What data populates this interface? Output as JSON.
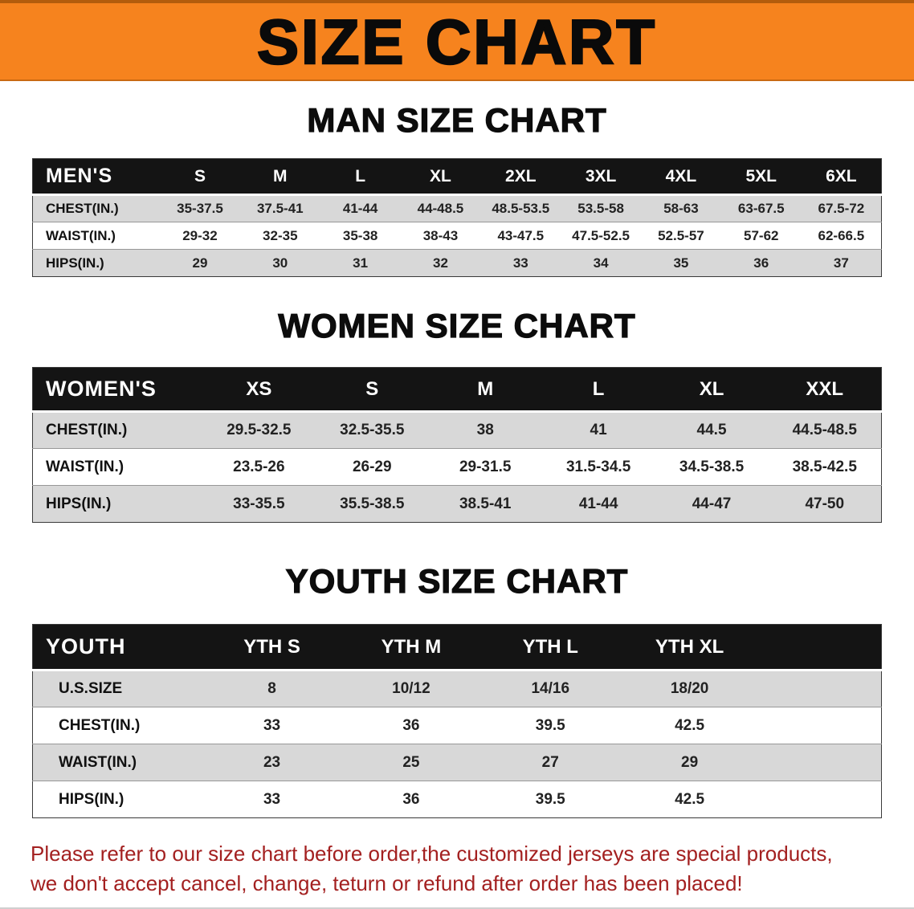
{
  "banner": {
    "title": "SIZE CHART"
  },
  "sections": [
    {
      "heading": "MAN SIZE CHART",
      "table": {
        "title": "MEN'S",
        "columns": [
          "S",
          "M",
          "L",
          "XL",
          "2XL",
          "3XL",
          "4XL",
          "5XL",
          "6XL"
        ],
        "rows": [
          {
            "label": "CHEST(IN.)",
            "values": [
              "35-37.5",
              "37.5-41",
              "41-44",
              "44-48.5",
              "48.5-53.5",
              "53.5-58",
              "58-63",
              "63-67.5",
              "67.5-72"
            ]
          },
          {
            "label": "WAIST(IN.)",
            "values": [
              "29-32",
              "32-35",
              "35-38",
              "38-43",
              "43-47.5",
              "47.5-52.5",
              "52.5-57",
              "57-62",
              "62-66.5"
            ]
          },
          {
            "label": "HIPS(IN.)",
            "values": [
              "29",
              "30",
              "31",
              "32",
              "33",
              "34",
              "35",
              "36",
              "37"
            ]
          }
        ]
      }
    },
    {
      "heading": "WOMEN SIZE CHART",
      "table": {
        "title": "WOMEN'S",
        "columns": [
          "XS",
          "S",
          "M",
          "L",
          "XL",
          "XXL"
        ],
        "rows": [
          {
            "label": "CHEST(IN.)",
            "values": [
              "29.5-32.5",
              "32.5-35.5",
              "38",
              "41",
              "44.5",
              "44.5-48.5"
            ]
          },
          {
            "label": "WAIST(IN.)",
            "values": [
              "23.5-26",
              "26-29",
              "29-31.5",
              "31.5-34.5",
              "34.5-38.5",
              "38.5-42.5"
            ]
          },
          {
            "label": "HIPS(IN.)",
            "values": [
              "33-35.5",
              "35.5-38.5",
              "38.5-41",
              "41-44",
              "44-47",
              "47-50"
            ]
          }
        ]
      }
    },
    {
      "heading": "YOUTH SIZE CHART",
      "table": {
        "title": "YOUTH",
        "columns": [
          "YTH S",
          "YTH M",
          "YTH L",
          "YTH XL"
        ],
        "rows": [
          {
            "label": "U.S.SIZE",
            "values": [
              "8",
              "10/12",
              "14/16",
              "18/20"
            ]
          },
          {
            "label": "CHEST(IN.)",
            "values": [
              "33",
              "36",
              "39.5",
              "42.5"
            ]
          },
          {
            "label": "WAIST(IN.)",
            "values": [
              "23",
              "25",
              "27",
              "29"
            ]
          },
          {
            "label": "HIPS(IN.)",
            "values": [
              "33",
              "36",
              "39.5",
              "42.5"
            ]
          }
        ]
      }
    }
  ],
  "disclaimer": {
    "lines": [
      "Please refer to our size chart before order,the customized jerseys are special products,",
      "we don't accept cancel, change, teturn or refund after order has been placed!"
    ]
  },
  "colors": {
    "banner-bg": "#f6831e",
    "header-bg": "#141414",
    "row-alt": "#d8d8d8",
    "disclaimer-red": "#a32020"
  }
}
